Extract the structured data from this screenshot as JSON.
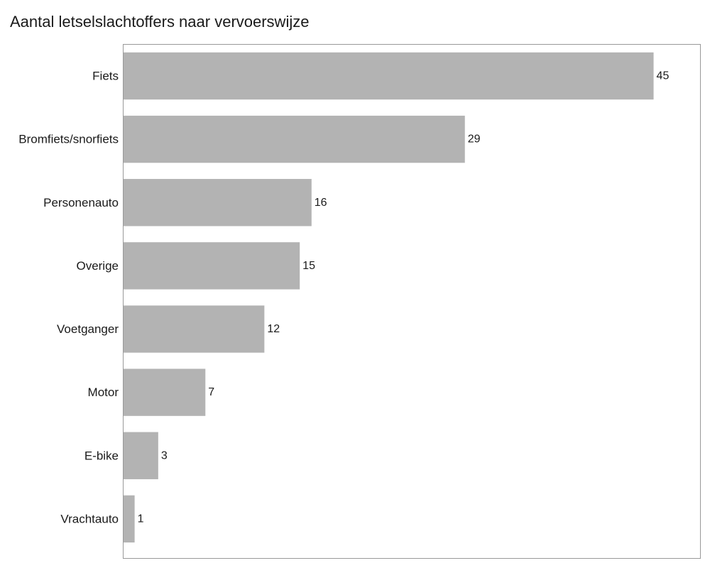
{
  "chart_data": {
    "type": "bar",
    "orientation": "horizontal",
    "title": "Aantal letselslachtoffers naar vervoerswijze",
    "xlabel": "",
    "ylabel": "",
    "categories": [
      "Fiets",
      "Bromfiets/snorfiets",
      "Personenauto",
      "Overige",
      "Voetganger",
      "Motor",
      "E-bike",
      "Vrachtauto"
    ],
    "values": [
      45,
      29,
      16,
      15,
      12,
      7,
      3,
      1
    ],
    "xlim": [
      0,
      49
    ],
    "grid": false,
    "legend": "none",
    "data_labels": true,
    "bar_color": "#b3b3b3",
    "frame_color": "#999999"
  }
}
